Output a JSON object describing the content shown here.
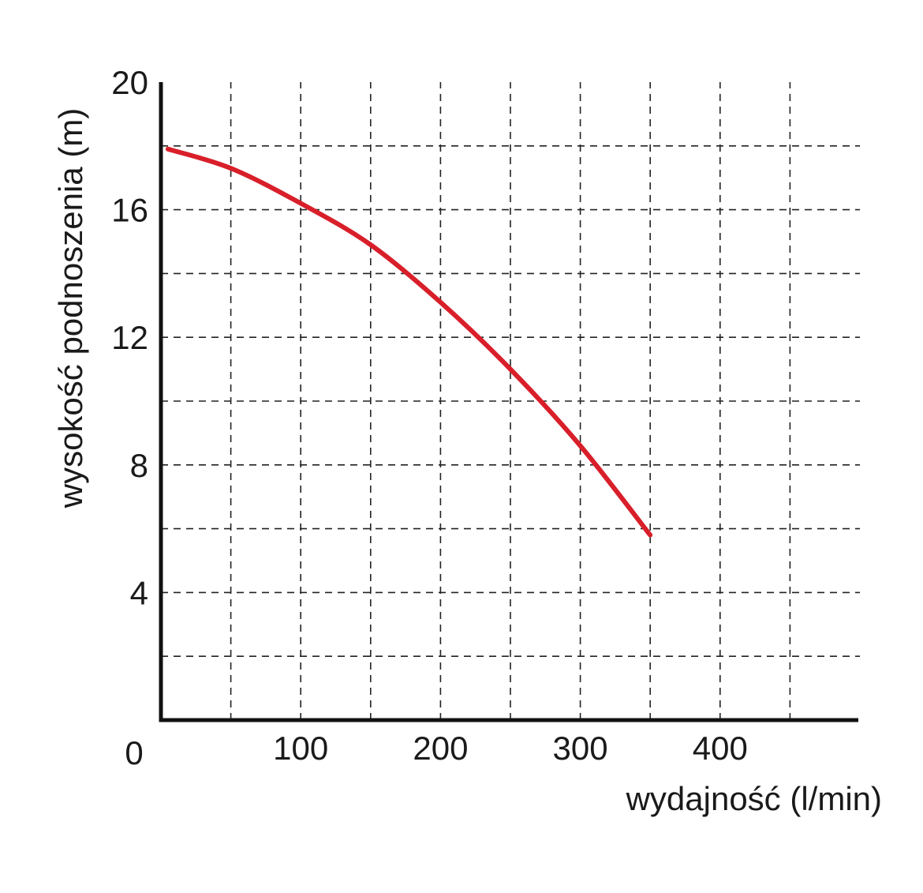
{
  "chart_data": {
    "type": "line",
    "title": "",
    "xlabel": "wydajność (l/min)",
    "ylabel": "wysokość podnoszenia (m)",
    "xlim": [
      0,
      500
    ],
    "ylim": [
      0,
      20
    ],
    "x_ticks": [
      100,
      200,
      300,
      400
    ],
    "y_ticks": [
      4,
      8,
      12,
      16,
      20
    ],
    "origin_label": "0",
    "x_grid": [
      50,
      100,
      150,
      200,
      250,
      300,
      350,
      400,
      450
    ],
    "y_grid": [
      2,
      4,
      6,
      8,
      10,
      12,
      14,
      16,
      18
    ],
    "grid": true,
    "series": [
      {
        "color": "#d81f2a",
        "x": [
          5,
          50,
          100,
          150,
          200,
          250,
          300,
          350
        ],
        "y": [
          17.9,
          17.3,
          16.2,
          14.9,
          13.1,
          11.0,
          8.6,
          5.8
        ]
      }
    ]
  }
}
